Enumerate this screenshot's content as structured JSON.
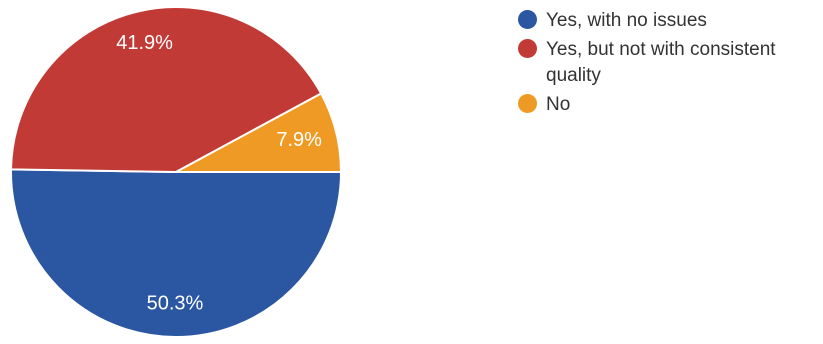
{
  "chart_data": {
    "type": "pie",
    "categories": [
      "Yes, with no issues",
      "Yes, but not with consistent quality",
      "No"
    ],
    "values": [
      50.3,
      41.9,
      7.9
    ],
    "labels": [
      "50.3%",
      "41.9%",
      "7.9%"
    ],
    "colors": [
      "#2a56a2",
      "#c23a36",
      "#ef9a24"
    ],
    "legend_position": "top-right",
    "start": "right-horizontal",
    "direction": "clockwise"
  }
}
